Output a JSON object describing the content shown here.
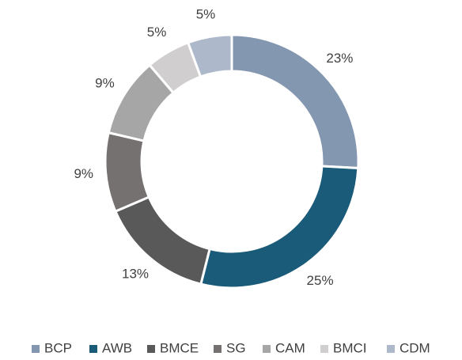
{
  "chart_data": {
    "type": "donut",
    "categories": [
      "BCP",
      "AWB",
      "BMCE",
      "SG",
      "CAM",
      "BMCI",
      "CDM"
    ],
    "values": [
      23,
      25,
      13,
      9,
      9,
      5,
      5
    ],
    "value_labels": [
      "23%",
      "25%",
      "13%",
      "9%",
      "9%",
      "5%",
      "5%"
    ],
    "colors": [
      "#8497b0",
      "#1a5b7a",
      "#595959",
      "#767171",
      "#a6a6a6",
      "#d0cece",
      "#adb9ca"
    ],
    "legend": "bottom"
  }
}
